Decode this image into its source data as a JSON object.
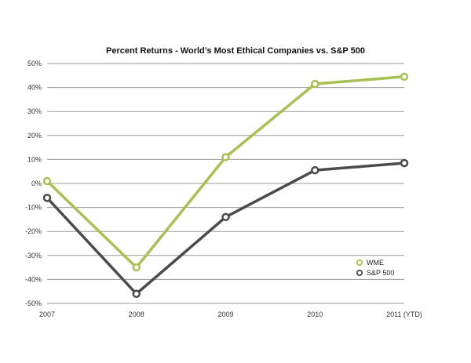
{
  "chart_data": {
    "type": "line",
    "title": "Percent Returns - World’s Most Ethical Companies vs. S&P 500",
    "categories": [
      "2007",
      "2008",
      "2009",
      "2010",
      "2011 (YTD)"
    ],
    "y_ticks": [
      "50%",
      "40%",
      "30%",
      "20%",
      "10%",
      "0%",
      "-10%",
      "-20%",
      "-30%",
      "-40%",
      "-50%"
    ],
    "ylim": [
      -50,
      50
    ],
    "xlabel": "",
    "ylabel": "",
    "grid": true,
    "legend_position": "bottom-right",
    "series": [
      {
        "name": "WME",
        "color": "#a7c156",
        "values": [
          1,
          -35,
          11,
          41.5,
          44.5
        ]
      },
      {
        "name": "S&P 500",
        "color": "#4b4b4b",
        "values": [
          -6,
          -46,
          -14,
          5.5,
          8.5
        ]
      }
    ]
  }
}
